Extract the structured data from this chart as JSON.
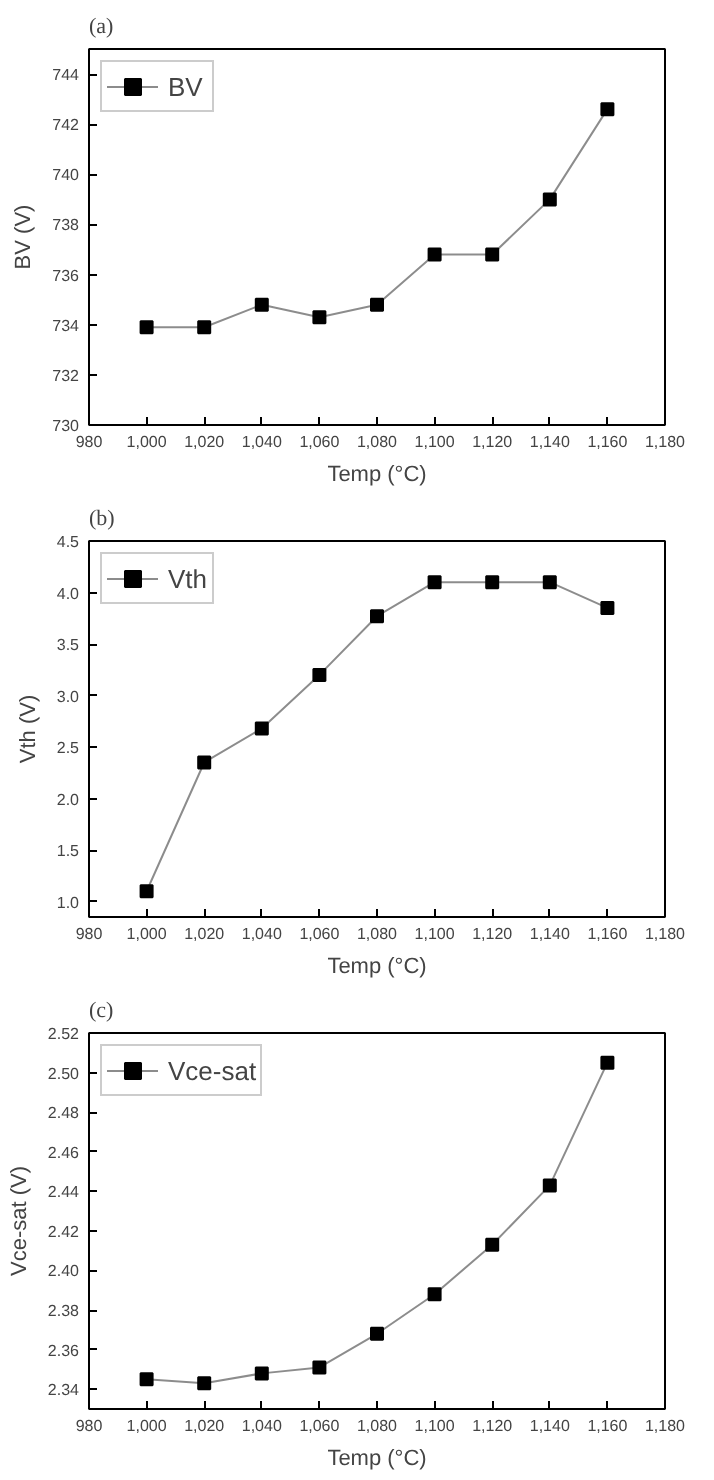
{
  "chart_data": [
    {
      "type": "line",
      "title": "(a)",
      "xlabel": "Temp (°C)",
      "ylabel": "BV (V)",
      "x": [
        1000,
        1020,
        1040,
        1060,
        1080,
        1100,
        1120,
        1140,
        1160
      ],
      "series": [
        {
          "name": "BV",
          "color": "#000000",
          "values": [
            733.9,
            733.9,
            734.8,
            734.3,
            734.8,
            736.8,
            736.8,
            739.0,
            742.6
          ]
        }
      ],
      "xlim": [
        980,
        1180
      ],
      "xticks": [
        980,
        {
          "value": 1000,
          "label": "1,000"
        },
        {
          "value": 1020,
          "label": "1,020"
        },
        {
          "value": 1040,
          "label": "1,040"
        },
        {
          "value": 1060,
          "label": "1,060"
        },
        {
          "value": 1080,
          "label": "1,080"
        },
        {
          "value": 1100,
          "label": "1,100"
        },
        {
          "value": 1120,
          "label": "1,120"
        },
        {
          "value": 1140,
          "label": "1,140"
        },
        {
          "value": 1160,
          "label": "1,160"
        },
        {
          "value": 1180,
          "label": "1,180"
        }
      ],
      "ylim": [
        730,
        745
      ],
      "yticks": [
        730,
        732,
        734,
        736,
        738,
        740,
        742,
        744
      ],
      "legend": "top left",
      "marker": "square",
      "grid": false
    },
    {
      "type": "line",
      "title": "(b)",
      "xlabel": "Temp (°C)",
      "ylabel": "Vth (V)",
      "x": [
        1000,
        1020,
        1040,
        1060,
        1080,
        1100,
        1120,
        1140,
        1160
      ],
      "series": [
        {
          "name": "Vth",
          "color": "#000000",
          "values": [
            1.1,
            2.35,
            2.68,
            3.2,
            3.77,
            4.1,
            4.1,
            4.1,
            3.85
          ]
        }
      ],
      "xlim": [
        980,
        1180
      ],
      "xticks": [
        980,
        {
          "value": 1000,
          "label": "1,000"
        },
        {
          "value": 1020,
          "label": "1,020"
        },
        {
          "value": 1040,
          "label": "1,040"
        },
        {
          "value": 1060,
          "label": "1,060"
        },
        {
          "value": 1080,
          "label": "1,080"
        },
        {
          "value": 1100,
          "label": "1,100"
        },
        {
          "value": 1120,
          "label": "1,120"
        },
        {
          "value": 1140,
          "label": "1,140"
        },
        {
          "value": 1160,
          "label": "1,160"
        },
        {
          "value": 1180,
          "label": "1,180"
        }
      ],
      "ylim": [
        0.85,
        4.5
      ],
      "yticks": [
        {
          "value": 1,
          "label": "1.0"
        },
        1.5,
        {
          "value": 2,
          "label": "2.0"
        },
        2.5,
        {
          "value": 3,
          "label": "3.0"
        },
        3.5,
        {
          "value": 4,
          "label": "4.0"
        },
        4.5
      ],
      "legend": "top left",
      "marker": "square",
      "grid": false
    },
    {
      "type": "line",
      "title": "(c)",
      "xlabel": "Temp (°C)",
      "ylabel": "Vce-sat (V)",
      "x": [
        1000,
        1020,
        1040,
        1060,
        1080,
        1100,
        1120,
        1140,
        1160
      ],
      "series": [
        {
          "name": "Vce-sat",
          "color": "#000000",
          "values": [
            2.345,
            2.343,
            2.348,
            2.351,
            2.368,
            2.388,
            2.413,
            2.443,
            2.505
          ]
        }
      ],
      "xlim": [
        980,
        1180
      ],
      "xticks": [
        980,
        {
          "value": 1000,
          "label": "1,000"
        },
        {
          "value": 1020,
          "label": "1,020"
        },
        {
          "value": 1040,
          "label": "1,040"
        },
        {
          "value": 1060,
          "label": "1,060"
        },
        {
          "value": 1080,
          "label": "1,080"
        },
        {
          "value": 1100,
          "label": "1,100"
        },
        {
          "value": 1120,
          "label": "1,120"
        },
        {
          "value": 1140,
          "label": "1,140"
        },
        {
          "value": 1160,
          "label": "1,160"
        },
        {
          "value": 1180,
          "label": "1,180"
        }
      ],
      "ylim": [
        2.33,
        2.52
      ],
      "yticks": [
        2.34,
        2.36,
        2.38,
        {
          "value": 2.4,
          "label": "2.40"
        },
        2.42,
        2.44,
        2.46,
        2.48,
        {
          "value": 2.5,
          "label": "2.50"
        },
        2.52
      ],
      "legend": "top left",
      "marker": "square",
      "grid": false
    }
  ]
}
